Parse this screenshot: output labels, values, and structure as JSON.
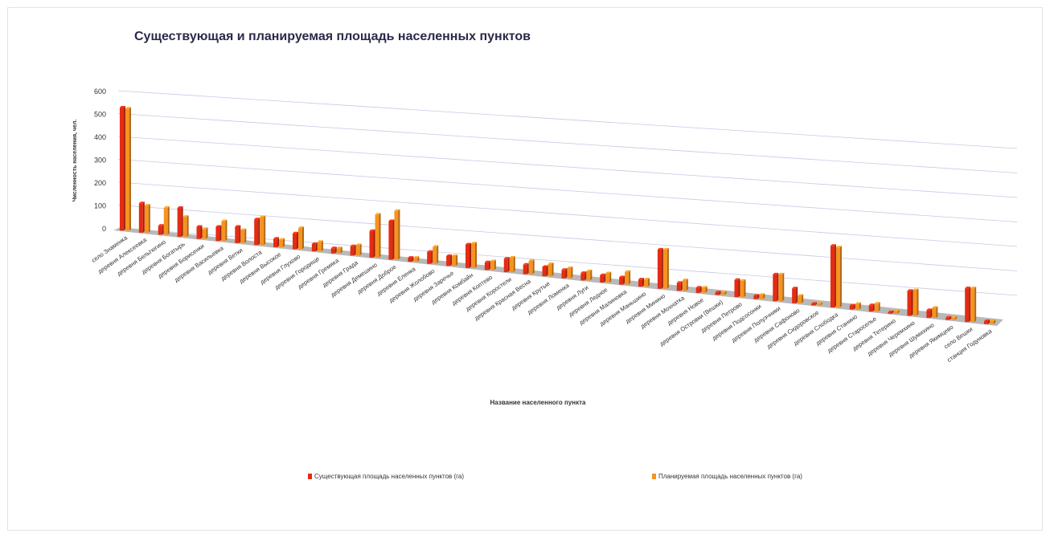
{
  "chart_data": {
    "type": "bar",
    "title": "Существующая и планируемая площадь населенных пунктов",
    "xlabel": "Название населенного пункта",
    "ylabel": "Численность населения, чел.",
    "ylim": [
      0,
      600
    ],
    "yticks": [
      "0",
      "100",
      "200",
      "300",
      "400",
      "500",
      "600"
    ],
    "grid": true,
    "legend_position": "bottom",
    "labels": [
      "село Знаменка",
      "деревня Алексеевка",
      "деревня Бельтюгино",
      "деревня Богатырь",
      "деревня Борисенки",
      "деревня Васильевка",
      "деревня Ветки",
      "деревня Волоста",
      "деревня Высокое",
      "деревня Глухово",
      "деревня Городище",
      "деревня Гремяка",
      "деревня Града",
      "деревня Демешино",
      "деревня Доброе",
      "деревня Еленка",
      "деревня Жолобово",
      "деревня Заречье",
      "деревня Комбайн",
      "деревня Коптево",
      "деревня Коростели",
      "деревня Красная Весна",
      "деревня Крутые",
      "деревня Ломенка",
      "деревня Луги",
      "деревня Ледное",
      "деревня Малиновка",
      "деревня Маньшино",
      "деревня Минино",
      "деревня Мохнатка",
      "деревня Новое",
      "деревня Островки (Вешки)",
      "деревня Петрово",
      "деревня Подсосонки",
      "деревня Полуэчники",
      "деревня Сафоново",
      "деревня Сидоровское",
      "деревня Слободка",
      "деревня Станино",
      "деревня Староселье",
      "деревня Тетерино",
      "деревня Черемхино",
      "деревня Шумихино",
      "деревня Якимцево",
      "село Вешки",
      "станция Годуновка"
    ],
    "series": [
      {
        "name": "Существующая площадь населенных пунктов (га)",
        "color": "#e52b12",
        "values": [
          540,
          130,
          40,
          130,
          55,
          65,
          75,
          120,
          40,
          75,
          35,
          25,
          45,
          130,
          190,
          20,
          60,
          50,
          120,
          40,
          70,
          50,
          50,
          45,
          40,
          40,
          40,
          40,
          220,
          45,
          30,
          15,
          100,
          20,
          160,
          90,
          10,
          380,
          25,
          40,
          10,
          160,
          50,
          15,
          225,
          20
        ]
      },
      {
        "name": "Планируемая площадь населенных пунктов (га)",
        "color": "#f7931e",
        "values": [
          535,
          120,
          120,
          90,
          45,
          90,
          60,
          130,
          35,
          100,
          45,
          25,
          50,
          210,
          240,
          20,
          85,
          50,
          125,
          45,
          75,
          70,
          65,
          55,
          50,
          50,
          70,
          40,
          220,
          60,
          30,
          15,
          95,
          25,
          160,
          45,
          10,
          370,
          35,
          50,
          15,
          165,
          65,
          15,
          225,
          20
        ]
      }
    ]
  }
}
